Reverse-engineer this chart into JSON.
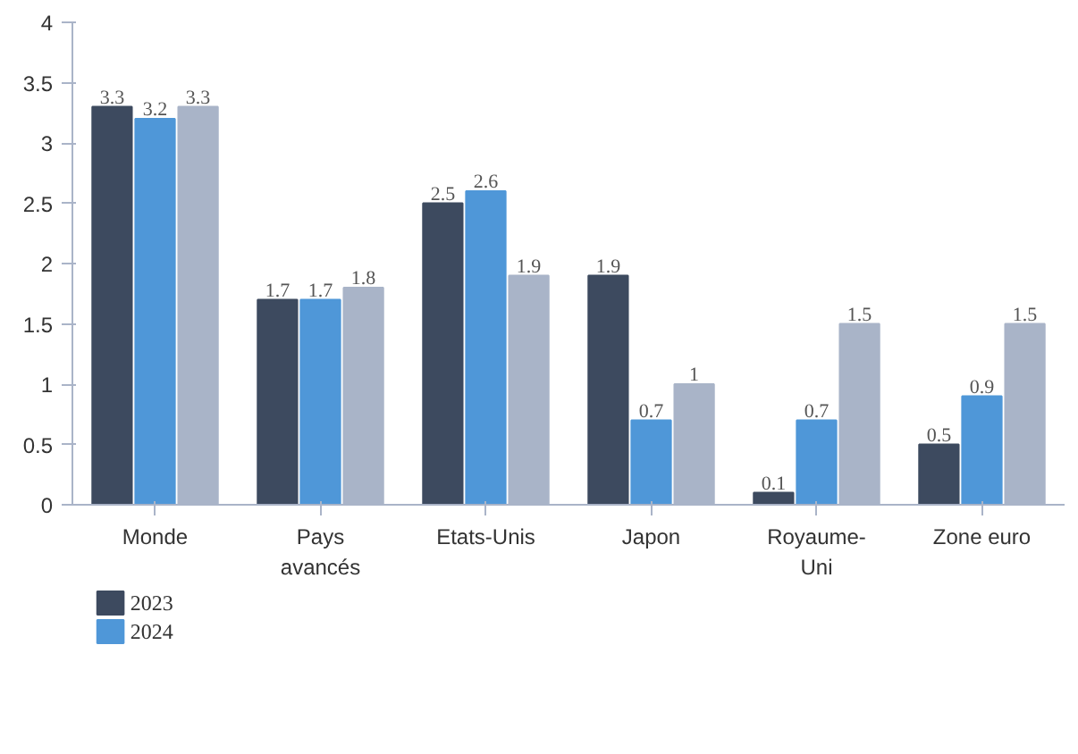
{
  "chart_data": {
    "type": "bar",
    "categories": [
      "Monde",
      "Pays avancés",
      "Etats-Unis",
      "Japon",
      "Royaume-Uni",
      "Zone euro"
    ],
    "series": [
      {
        "name": "2023",
        "color": "#3d4a5f",
        "values": [
          3.3,
          1.7,
          2.5,
          1.9,
          0.1,
          0.5
        ]
      },
      {
        "name": "2024",
        "color": "#4f97d8",
        "values": [
          3.2,
          1.7,
          2.6,
          0.7,
          0.7,
          0.9
        ]
      },
      {
        "color": "#a9b4c8",
        "values": [
          3.3,
          1.8,
          1.9,
          1,
          1.5,
          1.5
        ]
      }
    ],
    "ylim": [
      0,
      4
    ],
    "yticks": [
      0,
      0.5,
      1,
      1.5,
      2,
      2.5,
      3,
      3.5,
      4
    ],
    "grid": false,
    "legend": "bottom left",
    "data_labels": true
  }
}
